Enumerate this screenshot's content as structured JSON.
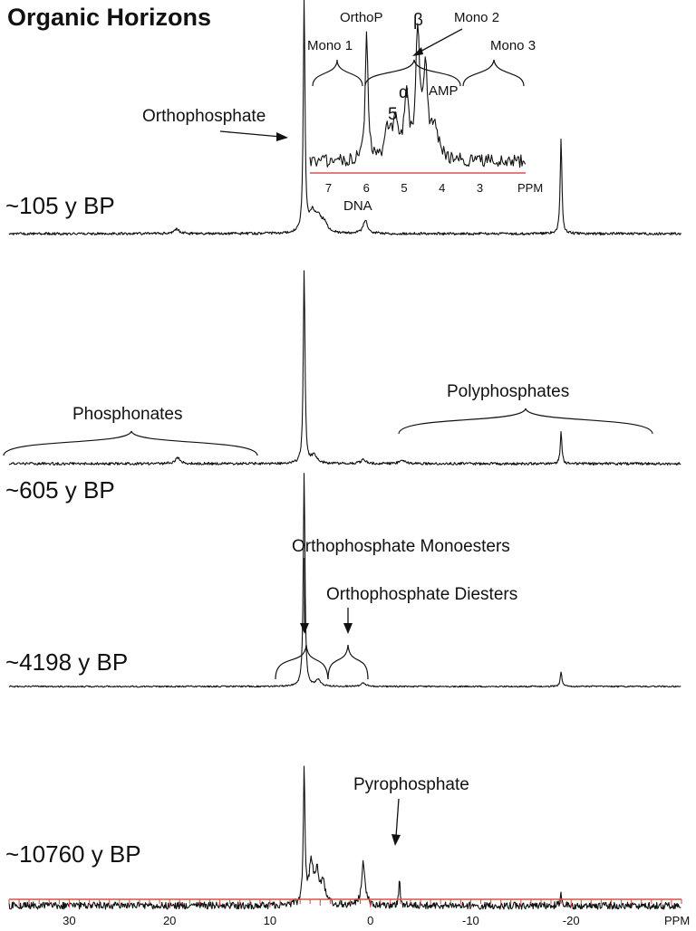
{
  "chart_data": {
    "type": "line",
    "title": "Organic Horizons",
    "xlabel": "PPM",
    "x_axis": {
      "reversed": true,
      "xlim": [
        36,
        -31
      ],
      "major_ticks": [
        30,
        20,
        10,
        0,
        -10,
        -20
      ],
      "minor_tick_step": 1,
      "tick_labels": [
        "30",
        "20",
        "10",
        "0",
        "-10",
        "-20"
      ],
      "unit_label": "PPM",
      "color": "#d9534f"
    },
    "y_axis": {
      "shown": false
    },
    "series": [
      {
        "name": "~105 y BP",
        "baseline_noise": "low",
        "peaks": [
          {
            "ppm": 6.6,
            "intensity": 1.0,
            "width": 0.1
          },
          {
            "ppm": 5.8,
            "intensity": 0.08,
            "width": 0.35
          },
          {
            "ppm": 5.2,
            "intensity": 0.06,
            "width": 0.35
          },
          {
            "ppm": 4.6,
            "intensity": 0.04,
            "width": 0.35
          },
          {
            "ppm": 0.5,
            "intensity": 0.06,
            "width": 0.25
          },
          {
            "ppm": -19.0,
            "intensity": 0.41,
            "width": 0.1
          },
          {
            "ppm": 19.3,
            "intensity": 0.02,
            "width": 0.3
          }
        ]
      },
      {
        "name": "~605 y BP",
        "baseline_noise": "low",
        "peaks": [
          {
            "ppm": 6.6,
            "intensity": 1.0,
            "width": 0.1
          },
          {
            "ppm": 5.6,
            "intensity": 0.04,
            "width": 0.35
          },
          {
            "ppm": 0.7,
            "intensity": 0.02,
            "width": 0.3
          },
          {
            "ppm": -19.0,
            "intensity": 0.16,
            "width": 0.1
          },
          {
            "ppm": 19.2,
            "intensity": 0.03,
            "width": 0.3
          },
          {
            "ppm": -3.2,
            "intensity": 0.02,
            "width": 0.3
          }
        ]
      },
      {
        "name": "~4198 y BP",
        "baseline_noise": "very low",
        "peaks": [
          {
            "ppm": 6.6,
            "intensity": 1.0,
            "width": 0.1
          },
          {
            "ppm": 5.2,
            "intensity": 0.03,
            "width": 0.3
          },
          {
            "ppm": 0.7,
            "intensity": 0.015,
            "width": 0.3
          },
          {
            "ppm": -19.0,
            "intensity": 0.07,
            "width": 0.1
          }
        ]
      },
      {
        "name": "~10760 y BP",
        "baseline_noise": "high",
        "peaks": [
          {
            "ppm": 6.6,
            "intensity": 1.0,
            "width": 0.1
          },
          {
            "ppm": 5.9,
            "intensity": 0.3,
            "width": 0.25
          },
          {
            "ppm": 5.3,
            "intensity": 0.22,
            "width": 0.25
          },
          {
            "ppm": 4.7,
            "intensity": 0.15,
            "width": 0.25
          },
          {
            "ppm": 0.7,
            "intensity": 0.33,
            "width": 0.2
          },
          {
            "ppm": -2.9,
            "intensity": 0.21,
            "width": 0.08
          },
          {
            "ppm": -19.0,
            "intensity": 0.08,
            "width": 0.1
          }
        ]
      }
    ],
    "inset": {
      "of_series": "~105 y BP",
      "xlim": [
        7.5,
        1.8
      ],
      "tick_labels": [
        "7",
        "6",
        "5",
        "4",
        "3"
      ],
      "ticks": [
        7,
        6,
        5,
        4,
        3
      ],
      "unit_label": "PPM",
      "peaks": [
        {
          "ppm": 6.0,
          "intensity": 1.0,
          "width": 0.04
        },
        {
          "ppm": 4.65,
          "intensity": 0.95,
          "width": 0.06
        },
        {
          "ppm": 4.45,
          "intensity": 0.62,
          "width": 0.07
        },
        {
          "ppm": 4.95,
          "intensity": 0.45,
          "width": 0.07
        },
        {
          "ppm": 5.25,
          "intensity": 0.3,
          "width": 0.08
        },
        {
          "ppm": 5.45,
          "intensity": 0.22,
          "width": 0.08
        },
        {
          "ppm": 4.2,
          "intensity": 0.25,
          "width": 0.1
        }
      ]
    },
    "annotations": [
      {
        "text": "Orthophosphate"
      },
      {
        "text": "DNA"
      },
      {
        "text": "OrthoP"
      },
      {
        "text": "Mono 1"
      },
      {
        "text": "Mono 2"
      },
      {
        "text": "Mono 3"
      },
      {
        "text": "β"
      },
      {
        "text": "α"
      },
      {
        "text": "5"
      },
      {
        "text": "AMP"
      },
      {
        "text": "Phosphonates"
      },
      {
        "text": "Polyphosphates"
      },
      {
        "text": "Orthophosphate Monoesters"
      },
      {
        "text": "Orthophosphate Diesters"
      },
      {
        "text": "Pyrophosphate"
      }
    ]
  }
}
